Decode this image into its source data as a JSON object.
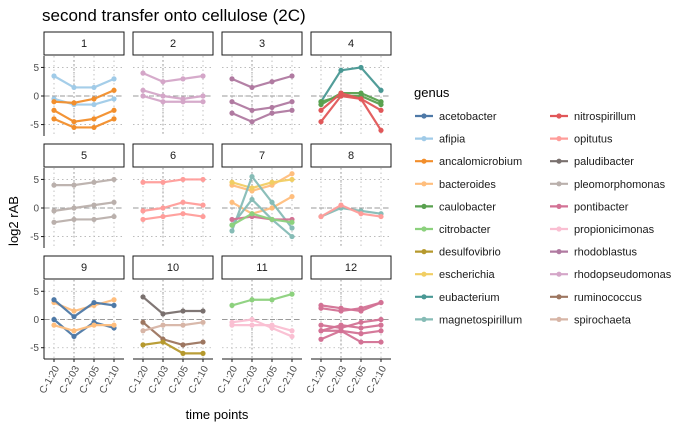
{
  "chart_data": {
    "type": "line",
    "title": "second transfer onto cellulose (2C)",
    "xlabel": "time points",
    "ylabel": "log2 rAB",
    "x_categories": [
      "C-1:20",
      "C-2:03",
      "C-2:05",
      "C-2:10"
    ],
    "y_ticks": [
      -5,
      0,
      5
    ],
    "ylim": [
      -7,
      7
    ],
    "reference_lines": {
      "y": 0,
      "x": "C-2:03",
      "style": "dotted/dashed grey"
    },
    "legend": {
      "title": "genus",
      "placement": "right",
      "columns": 2
    },
    "genera": [
      {
        "name": "acetobacter",
        "color": "#4e79a7"
      },
      {
        "name": "afipia",
        "color": "#a0cbe8"
      },
      {
        "name": "ancalomicrobium",
        "color": "#f28e2b"
      },
      {
        "name": "bacteroides",
        "color": "#ffbe7d"
      },
      {
        "name": "caulobacter",
        "color": "#59a14f"
      },
      {
        "name": "citrobacter",
        "color": "#8cd17d"
      },
      {
        "name": "desulfovibrio",
        "color": "#b6992d"
      },
      {
        "name": "escherichia",
        "color": "#f1ce63"
      },
      {
        "name": "eubacterium",
        "color": "#499894"
      },
      {
        "name": "magnetospirillum",
        "color": "#86bcb6"
      },
      {
        "name": "nitrospirillum",
        "color": "#e15759"
      },
      {
        "name": "opitutus",
        "color": "#ff9d9a"
      },
      {
        "name": "paludibacter",
        "color": "#79706e"
      },
      {
        "name": "pleomorphomonas",
        "color": "#bab0ac"
      },
      {
        "name": "pontibacter",
        "color": "#d37295"
      },
      {
        "name": "propionicimonas",
        "color": "#fabfd2"
      },
      {
        "name": "rhodoblastus",
        "color": "#b07aa1"
      },
      {
        "name": "rhodopseudomonas",
        "color": "#d4a6c8"
      },
      {
        "name": "ruminococcus",
        "color": "#9d7660"
      },
      {
        "name": "spirochaeta",
        "color": "#d7b5a6"
      }
    ],
    "panels": [
      {
        "label": "1",
        "series": [
          {
            "genus": "afipia",
            "values": [
              3.5,
              1.5,
              1.5,
              3
            ]
          },
          {
            "genus": "afipia",
            "values": [
              -0.5,
              -1.5,
              -1.5,
              -0.5
            ]
          },
          {
            "genus": "ancalomicrobium",
            "values": [
              -1,
              -1.2,
              -0.5,
              1
            ]
          },
          {
            "genus": "ancalomicrobium",
            "values": [
              -4,
              -5.5,
              -5.5,
              -4
            ]
          },
          {
            "genus": "ancalomicrobium",
            "values": [
              -2.5,
              -4.5,
              -4,
              -2.5
            ]
          }
        ]
      },
      {
        "label": "2",
        "series": [
          {
            "genus": "rhodopseudomonas",
            "values": [
              4,
              2.5,
              3,
              3.5
            ]
          },
          {
            "genus": "rhodopseudomonas",
            "values": [
              1,
              0,
              -0.5,
              0
            ]
          },
          {
            "genus": "rhodopseudomonas",
            "values": [
              0,
              -1,
              -1,
              -1
            ]
          }
        ]
      },
      {
        "label": "3",
        "series": [
          {
            "genus": "rhodoblastus",
            "values": [
              3,
              1.5,
              2.5,
              3.5
            ]
          },
          {
            "genus": "rhodoblastus",
            "values": [
              -1,
              -2.5,
              -2,
              -1
            ]
          },
          {
            "genus": "rhodoblastus",
            "values": [
              -3,
              -4.5,
              -3,
              -2.5
            ]
          }
        ]
      },
      {
        "label": "4",
        "series": [
          {
            "genus": "eubacterium",
            "values": [
              -1,
              4.5,
              5,
              1
            ]
          },
          {
            "genus": "caulobacter",
            "values": [
              -1.5,
              0.5,
              0.5,
              -1
            ]
          },
          {
            "genus": "caulobacter",
            "values": [
              -1,
              0,
              0,
              -1.5
            ]
          },
          {
            "genus": "nitrospirillum",
            "values": [
              -4.5,
              0,
              -0.5,
              -2.5
            ]
          },
          {
            "genus": "nitrospirillum",
            "values": [
              -2.5,
              0.5,
              -0.5,
              -6
            ]
          }
        ]
      },
      {
        "label": "5",
        "series": [
          {
            "genus": "pleomorphomonas",
            "values": [
              4,
              4,
              4.5,
              5
            ]
          },
          {
            "genus": "pleomorphomonas",
            "values": [
              -0.5,
              0,
              0.5,
              1
            ]
          },
          {
            "genus": "pleomorphomonas",
            "values": [
              -2.5,
              -2,
              -2,
              -1.5
            ]
          }
        ]
      },
      {
        "label": "6",
        "series": [
          {
            "genus": "opitutus",
            "values": [
              4.5,
              4.5,
              5,
              5
            ]
          },
          {
            "genus": "opitutus",
            "values": [
              -0.5,
              0,
              1,
              0.5
            ]
          },
          {
            "genus": "opitutus",
            "values": [
              -2,
              -1.5,
              -1,
              -1.5
            ]
          }
        ]
      },
      {
        "label": "7",
        "series": [
          {
            "genus": "bacteroides",
            "values": [
              4,
              3,
              4,
              6
            ]
          },
          {
            "genus": "escherichia",
            "values": [
              4.5,
              3.5,
              4.5,
              5
            ]
          },
          {
            "genus": "bacteroides",
            "values": [
              1,
              -1,
              0,
              2
            ]
          },
          {
            "genus": "magnetospirillum",
            "values": [
              -4,
              5.5,
              1,
              -3.5
            ]
          },
          {
            "genus": "magnetospirillum",
            "values": [
              -3,
              1.5,
              -2,
              -5
            ]
          },
          {
            "genus": "pontibacter",
            "values": [
              -2,
              -1.5,
              -2,
              -2
            ]
          },
          {
            "genus": "citrobacter",
            "values": [
              -3,
              -1,
              -2,
              -2.5
            ]
          }
        ]
      },
      {
        "label": "8",
        "series": [
          {
            "genus": "magnetospirillum",
            "values": [
              -1.5,
              0,
              -0.5,
              -1
            ]
          },
          {
            "genus": "opitutus",
            "values": [
              -1.5,
              0.5,
              -1,
              -1.5
            ]
          }
        ]
      },
      {
        "label": "9",
        "series": [
          {
            "genus": "bacteroides",
            "values": [
              3,
              1.5,
              2.5,
              3.5
            ]
          },
          {
            "genus": "acetobacter",
            "values": [
              3.5,
              0.5,
              3,
              2.5
            ]
          },
          {
            "genus": "acetobacter",
            "values": [
              0,
              -3,
              -0.5,
              -1.5
            ]
          },
          {
            "genus": "bacteroides",
            "values": [
              -1,
              -2,
              -1,
              -1
            ]
          }
        ]
      },
      {
        "label": "10",
        "series": [
          {
            "genus": "paludibacter",
            "values": [
              4,
              1,
              1.5,
              1.5
            ]
          },
          {
            "genus": "ruminococcus",
            "values": [
              -0.5,
              -3.5,
              -4.5,
              -4
            ]
          },
          {
            "genus": "desulfovibrio",
            "values": [
              -4.5,
              -4,
              -6,
              -6
            ]
          },
          {
            "genus": "spirochaeta",
            "values": [
              -2,
              -1,
              -1,
              -0.5
            ]
          }
        ]
      },
      {
        "label": "11",
        "series": [
          {
            "genus": "citrobacter",
            "values": [
              2.5,
              3.5,
              3.5,
              4.5
            ]
          },
          {
            "genus": "propionicimonas",
            "values": [
              -0.5,
              0,
              -1.5,
              -3
            ]
          },
          {
            "genus": "propionicimonas",
            "values": [
              -1,
              -1,
              -1,
              -2
            ]
          }
        ]
      },
      {
        "label": "12",
        "series": [
          {
            "genus": "pontibacter",
            "values": [
              2.5,
              2,
              1.5,
              3
            ]
          },
          {
            "genus": "pontibacter",
            "values": [
              2,
              1.5,
              2,
              3
            ]
          },
          {
            "genus": "pontibacter",
            "values": [
              -1,
              -1.5,
              -0.5,
              0
            ]
          },
          {
            "genus": "pontibacter",
            "values": [
              -2,
              -1,
              -1.5,
              -1
            ]
          },
          {
            "genus": "pontibacter",
            "values": [
              -2,
              -2,
              -2.5,
              -2
            ]
          },
          {
            "genus": "pontibacter",
            "values": [
              -3.5,
              -2,
              -4,
              -4
            ]
          }
        ]
      }
    ]
  }
}
